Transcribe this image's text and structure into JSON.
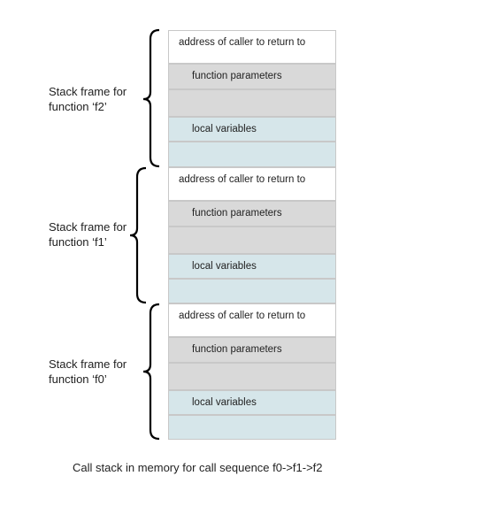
{
  "frames": [
    {
      "label_line1": "Stack frame for",
      "label_line2": "function ‘f2’",
      "return_address": "address of caller to return to",
      "parameters": "function parameters",
      "locals": "local variables"
    },
    {
      "label_line1": "Stack frame for",
      "label_line2": "function ‘f1’",
      "return_address": "address of caller to return to",
      "parameters": "function parameters",
      "locals": "local variables"
    },
    {
      "label_line1": "Stack frame for",
      "label_line2": "function ‘f0’",
      "return_address": "address of caller to return to",
      "parameters": "function parameters",
      "locals": "local variables"
    }
  ],
  "caption": "Call stack in memory for call sequence f0->f1->f2",
  "colors": {
    "return_cell": "#ffffff",
    "parameter_cell": "#d9d9d9",
    "local_cell": "#d6e6ea",
    "border": "#c8c8c8",
    "brace": "#000000"
  }
}
